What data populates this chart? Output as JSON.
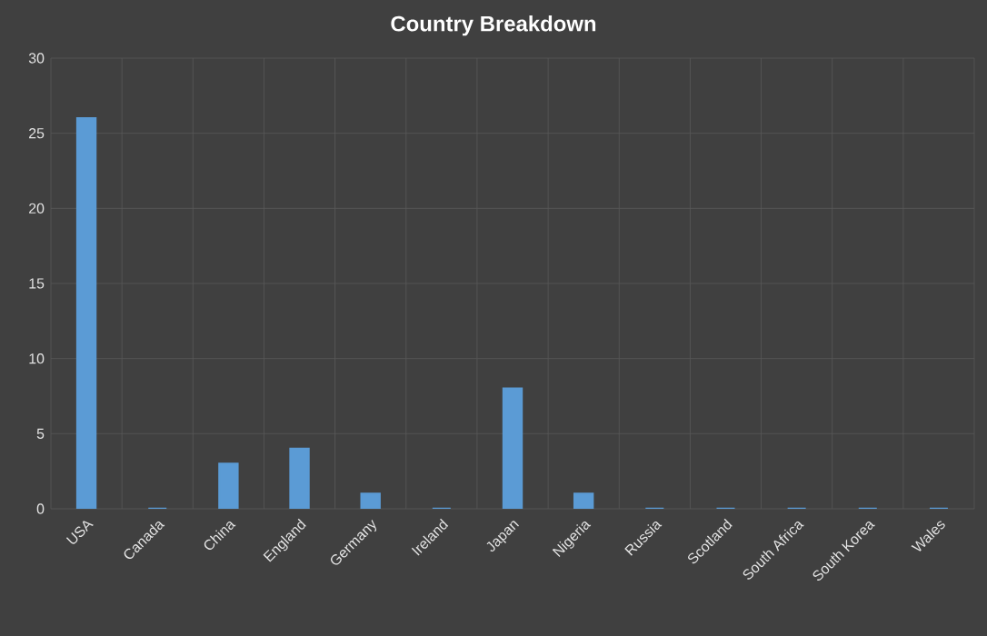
{
  "chart_data": {
    "type": "bar",
    "title": "Country Breakdown",
    "categories": [
      "USA",
      "Canada",
      "China",
      "England",
      "Germany",
      "Ireland",
      "Japan",
      "Nigeria",
      "Russia",
      "Scotland",
      "South Africa",
      "South Korea",
      "Wales"
    ],
    "values": [
      26,
      0,
      3,
      4,
      1,
      0,
      8,
      1,
      0,
      0,
      0,
      0,
      0
    ],
    "color": "#5b9bd5",
    "ylim": [
      0,
      30
    ],
    "yticks": [
      0,
      5,
      10,
      15,
      20,
      25,
      30
    ],
    "grid": true
  }
}
